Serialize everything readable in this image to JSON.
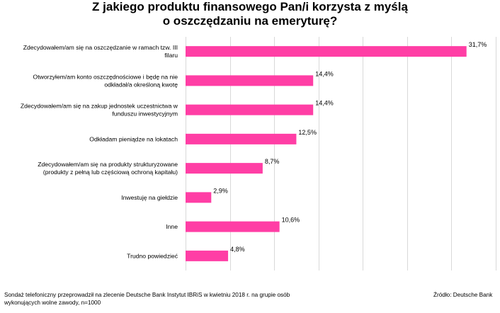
{
  "chart_data": {
    "type": "bar",
    "orientation": "horizontal",
    "title_lines": [
      "Z jakiego produktu finansowego Pan/i korzysta z myślą",
      "o oszczędzaniu na emeryturę?"
    ],
    "categories": [
      [
        "Zdecydowałem/am się na oszczędzanie w ramach tzw. III",
        "filaru"
      ],
      [
        "Otworzyłem/am konto oszczędnościowe i będę na nie",
        "odkładał/a określoną kwotę"
      ],
      [
        "Zdecydowałem/am się na zakup jednostek uczestnictwa w",
        "funduszu inwestycyjnym"
      ],
      [
        "Odkładam  pieniądze na lokatach"
      ],
      [
        "Zdecydowałem/am się na produkty strukturyzowane",
        "(produkty z pełną lub częściową ochroną kapitału)"
      ],
      [
        "Inwestuję na giełdzie"
      ],
      [
        "Inne"
      ],
      [
        "Trudno powiedzieć"
      ]
    ],
    "values": [
      31.7,
      14.4,
      14.4,
      12.5,
      8.7,
      2.9,
      10.6,
      4.8
    ],
    "value_labels": [
      "31,7%",
      "14,4%",
      "14,4%",
      "12,5%",
      "8,7%",
      "2,9%",
      "10,6%",
      "4,8%"
    ],
    "xlim": [
      0,
      35
    ],
    "grid": true,
    "bar_color": "#ff3ea5",
    "grid_color": "#d9d9d9"
  },
  "footer": {
    "note_lines": [
      "Sondaż telefoniczny przeprowadził na zlecenie Deutsche Bank  Instytut IBRiS w kwietniu 2018 r. na  grupie osób",
      "wykonujących wolne zawody, n=1000"
    ],
    "source": "Źródło: Deutsche Bank"
  }
}
